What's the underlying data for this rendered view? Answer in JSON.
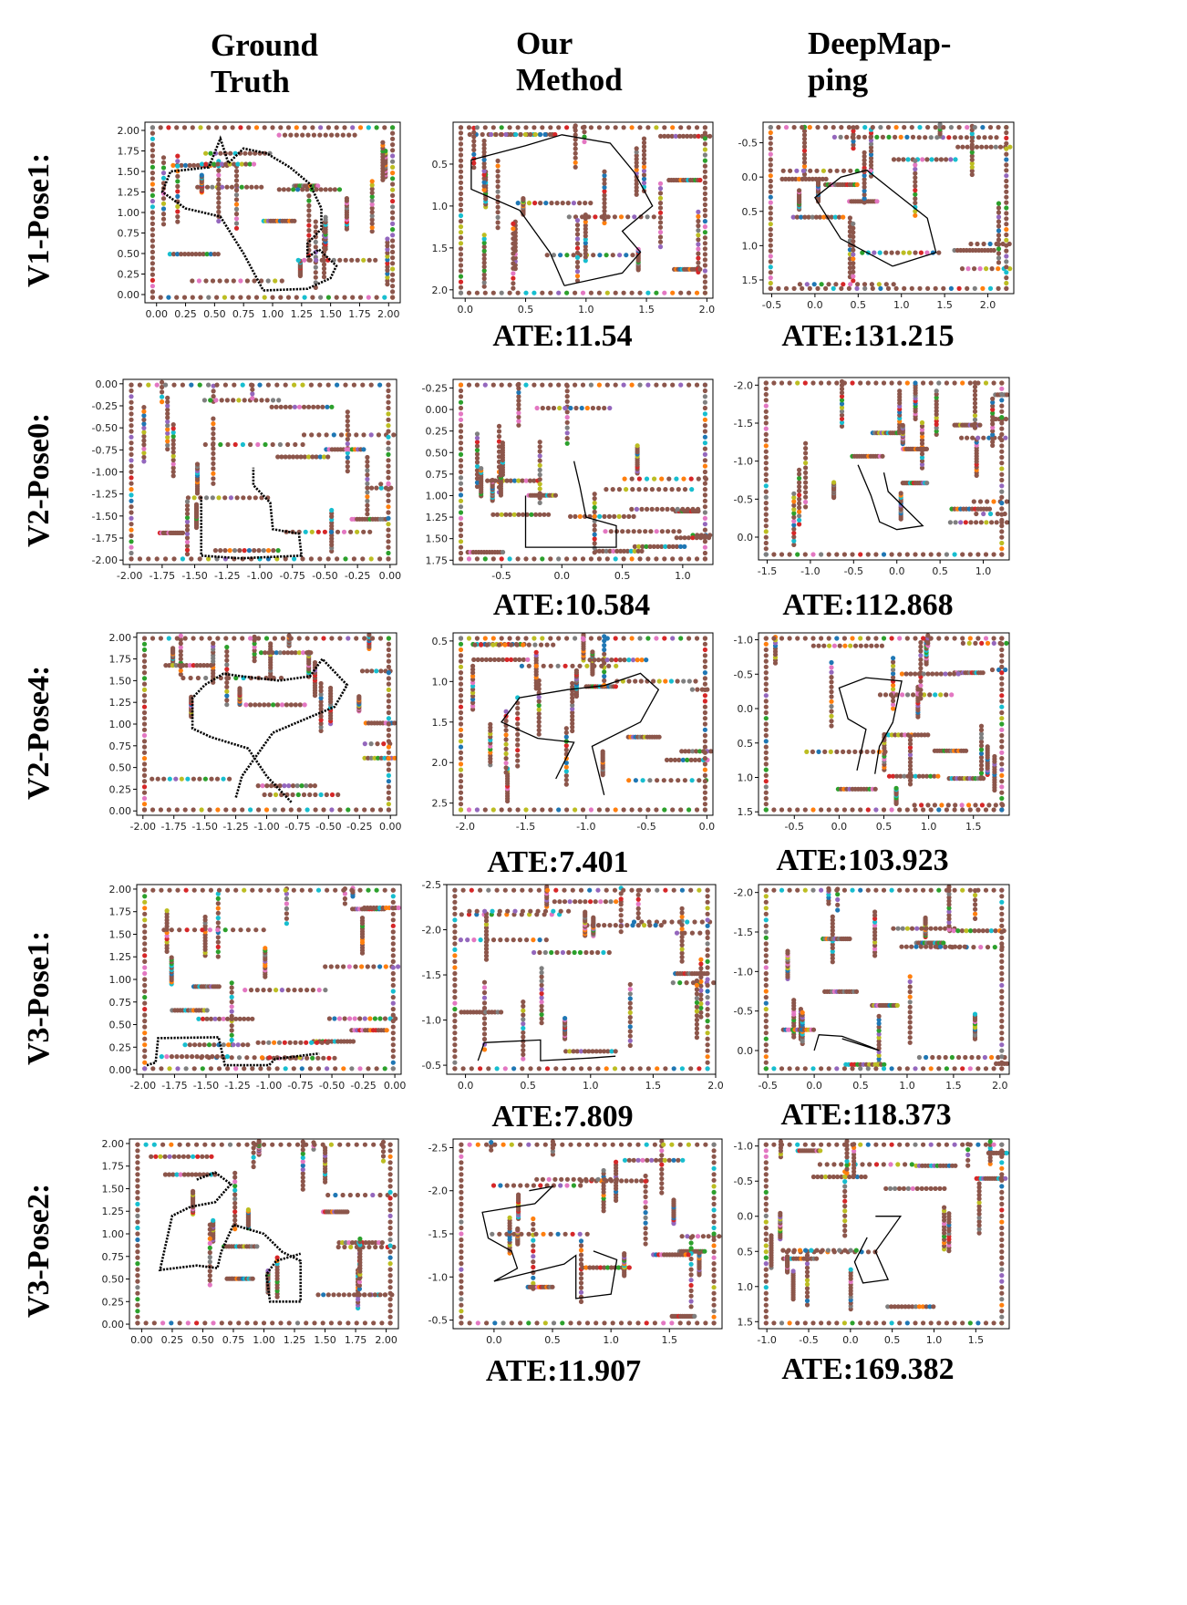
{
  "headers": {
    "ground_truth": [
      "Ground",
      "Truth"
    ],
    "our_method": [
      "Our",
      "Method"
    ],
    "deepmapping": [
      "DeepMap-",
      "ping"
    ]
  },
  "rows": [
    {
      "label": "V1-Pose1:",
      "our_ate": "ATE:11.54",
      "dm_ate": "ATE:131.215"
    },
    {
      "label": "V2-Pose0:",
      "our_ate": "ATE:10.584",
      "dm_ate": "ATE:112.868"
    },
    {
      "label": "V2-Pose4:",
      "our_ate": "ATE:7.401",
      "dm_ate": "ATE:103.923"
    },
    {
      "label": "V3-Pose1:",
      "our_ate": "ATE:7.809",
      "dm_ate": "ATE:118.373"
    },
    {
      "label": "V3-Pose2:",
      "our_ate": "ATE:11.907",
      "dm_ate": "ATE:169.382"
    }
  ],
  "colors": {
    "trajectory": "#000000",
    "wall": "#8c564b",
    "accents": [
      "#e377c2",
      "#2ca02c",
      "#1f77b4",
      "#ff7f0e",
      "#17becf",
      "#bcbd22",
      "#7f7f7f",
      "#d62728",
      "#9467bd"
    ]
  },
  "chart_data": [
    {
      "type": "scatter",
      "row": 0,
      "col": "ground_truth",
      "xlim": [
        -0.1,
        2.1
      ],
      "ylim": [
        -0.1,
        2.1
      ],
      "y_inverted": false,
      "xticks": [
        "0.00",
        "0.25",
        "0.50",
        "0.75",
        "1.00",
        "1.25",
        "1.50",
        "1.75",
        "2.00"
      ],
      "yticks": [
        "0.00",
        "0.25",
        "0.50",
        "0.75",
        "1.00",
        "1.25",
        "1.50",
        "1.75",
        "2.00"
      ],
      "trajectory": [
        [
          0.92,
          0.05
        ],
        [
          1.3,
          0.07
        ],
        [
          1.5,
          0.2
        ],
        [
          1.55,
          0.35
        ],
        [
          1.4,
          0.55
        ],
        [
          1.3,
          0.45
        ],
        [
          1.3,
          0.62
        ],
        [
          1.42,
          0.8
        ],
        [
          1.42,
          1.05
        ],
        [
          1.32,
          1.35
        ],
        [
          1.15,
          1.55
        ],
        [
          0.95,
          1.72
        ],
        [
          0.75,
          1.78
        ],
        [
          0.62,
          1.6
        ],
        [
          0.55,
          1.9
        ],
        [
          0.45,
          1.55
        ],
        [
          0.12,
          1.5
        ],
        [
          0.05,
          1.25
        ],
        [
          0.25,
          1.05
        ],
        [
          0.55,
          0.95
        ],
        [
          0.75,
          0.5
        ],
        [
          0.92,
          0.05
        ]
      ]
    },
    {
      "type": "scatter",
      "row": 0,
      "col": "our_method",
      "xlim": [
        -0.1,
        2.05
      ],
      "ylim": [
        2.1,
        0.0
      ],
      "y_inverted": true,
      "xticks": [
        "0.0",
        "0.5",
        "1.0",
        "1.5",
        "2.0"
      ],
      "yticks": [
        "0.5",
        "1.0",
        "1.5",
        "2.0"
      ],
      "trajectory": [
        [
          0.82,
          1.95
        ],
        [
          1.3,
          1.8
        ],
        [
          1.45,
          1.55
        ],
        [
          1.3,
          1.3
        ],
        [
          1.55,
          1.0
        ],
        [
          1.4,
          0.6
        ],
        [
          1.2,
          0.25
        ],
        [
          0.8,
          0.15
        ],
        [
          0.5,
          0.28
        ],
        [
          0.05,
          0.45
        ],
        [
          0.05,
          0.8
        ],
        [
          0.45,
          1.05
        ],
        [
          0.7,
          1.55
        ],
        [
          0.82,
          1.95
        ]
      ]
    },
    {
      "type": "scatter",
      "row": 0,
      "col": "deepmapping",
      "xlim": [
        -0.6,
        2.3
      ],
      "ylim": [
        1.7,
        -0.8
      ],
      "y_inverted": true,
      "xticks": [
        "-0.5",
        "0.0",
        "0.5",
        "1.0",
        "1.5",
        "2.0"
      ],
      "yticks": [
        "-0.5",
        "0.0",
        "0.5",
        "1.0",
        "1.5"
      ],
      "trajectory": [
        [
          0.9,
          1.3
        ],
        [
          1.4,
          1.1
        ],
        [
          1.3,
          0.6
        ],
        [
          0.9,
          0.2
        ],
        [
          0.6,
          -0.1
        ],
        [
          0.3,
          0.0
        ],
        [
          0.0,
          0.3
        ],
        [
          0.3,
          0.9
        ],
        [
          0.9,
          1.3
        ]
      ]
    },
    {
      "type": "scatter",
      "row": 1,
      "col": "ground_truth",
      "xlim": [
        -2.05,
        0.05
      ],
      "ylim": [
        -2.05,
        0.05
      ],
      "y_inverted": false,
      "xticks": [
        "-2.00",
        "-1.75",
        "-1.50",
        "-1.25",
        "-1.00",
        "-0.75",
        "-0.50",
        "-0.25",
        "0.00"
      ],
      "yticks": [
        "0.00",
        "-0.25",
        "-0.50",
        "-0.75",
        "-1.00",
        "-1.25",
        "-1.50",
        "-1.75",
        "-2.00"
      ],
      "trajectory": [
        [
          -1.45,
          -1.28
        ],
        [
          -1.45,
          -1.95
        ],
        [
          -1.15,
          -1.98
        ],
        [
          -0.68,
          -1.95
        ],
        [
          -0.7,
          -1.7
        ],
        [
          -0.9,
          -1.65
        ],
        [
          -0.92,
          -1.35
        ],
        [
          -1.05,
          -1.15
        ],
        [
          -1.05,
          -0.95
        ]
      ]
    },
    {
      "type": "scatter",
      "row": 1,
      "col": "our_method",
      "xlim": [
        -0.9,
        1.25
      ],
      "ylim": [
        1.8,
        -0.35
      ],
      "y_inverted": true,
      "xticks": [
        "-0.5",
        "0.0",
        "0.5",
        "1.0"
      ],
      "yticks": [
        "-0.25",
        "0.00",
        "0.25",
        "0.50",
        "0.75",
        "1.00",
        "1.25",
        "1.50",
        "1.75"
      ],
      "trajectory": [
        [
          -0.3,
          1.0
        ],
        [
          -0.3,
          1.6
        ],
        [
          0.3,
          1.6
        ],
        [
          0.45,
          1.6
        ],
        [
          0.45,
          1.35
        ],
        [
          0.2,
          1.25
        ],
        [
          0.15,
          0.9
        ],
        [
          0.1,
          0.6
        ]
      ]
    },
    {
      "type": "scatter",
      "row": 1,
      "col": "deepmapping",
      "xlim": [
        -1.6,
        1.3
      ],
      "ylim": [
        0.3,
        -2.1
      ],
      "y_inverted": true,
      "xticks": [
        "-1.5",
        "-1.0",
        "-0.5",
        "0.0",
        "0.5",
        "1.0"
      ],
      "yticks": [
        "-2.0",
        "-1.5",
        "-1.0",
        "-0.5",
        "0.0"
      ],
      "trajectory": [
        [
          -0.45,
          -0.95
        ],
        [
          -0.3,
          -0.55
        ],
        [
          -0.2,
          -0.2
        ],
        [
          0.0,
          -0.1
        ],
        [
          0.3,
          -0.15
        ],
        [
          -0.1,
          -0.6
        ],
        [
          -0.15,
          -0.85
        ]
      ]
    },
    {
      "type": "scatter",
      "row": 2,
      "col": "ground_truth",
      "xlim": [
        -2.05,
        0.05
      ],
      "ylim": [
        -0.05,
        2.05
      ],
      "y_inverted": false,
      "xticks": [
        "-2.00",
        "-1.75",
        "-1.50",
        "-1.25",
        "-1.00",
        "-0.75",
        "-0.50",
        "-0.25",
        "0.00"
      ],
      "yticks": [
        "0.00",
        "0.25",
        "0.50",
        "0.75",
        "1.00",
        "1.25",
        "1.50",
        "1.75",
        "2.00"
      ],
      "trajectory": [
        [
          -0.8,
          0.1
        ],
        [
          -1.0,
          0.4
        ],
        [
          -1.15,
          0.72
        ],
        [
          -1.45,
          0.85
        ],
        [
          -1.6,
          0.95
        ],
        [
          -1.6,
          1.3
        ],
        [
          -1.5,
          1.45
        ],
        [
          -1.35,
          1.58
        ],
        [
          -1.2,
          1.55
        ],
        [
          -0.9,
          1.5
        ],
        [
          -0.65,
          1.55
        ],
        [
          -0.55,
          1.75
        ],
        [
          -0.45,
          1.6
        ],
        [
          -0.35,
          1.45
        ],
        [
          -0.45,
          1.2
        ],
        [
          -0.7,
          1.05
        ],
        [
          -0.95,
          0.9
        ],
        [
          -1.05,
          0.7
        ],
        [
          -1.2,
          0.4
        ],
        [
          -1.25,
          0.15
        ]
      ]
    },
    {
      "type": "scatter",
      "row": 2,
      "col": "our_method",
      "xlim": [
        -2.1,
        0.05
      ],
      "ylim": [
        2.65,
        0.4
      ],
      "y_inverted": true,
      "xticks": [
        "-2.0",
        "-1.5",
        "-1.0",
        "-0.5",
        "0.0"
      ],
      "yticks": [
        "0.5",
        "1.0",
        "1.5",
        "2.0",
        "2.5"
      ],
      "trajectory": [
        [
          -0.85,
          2.4
        ],
        [
          -0.95,
          1.8
        ],
        [
          -0.55,
          1.5
        ],
        [
          -0.4,
          1.1
        ],
        [
          -0.55,
          0.9
        ],
        [
          -0.85,
          1.05
        ],
        [
          -1.15,
          1.1
        ],
        [
          -1.55,
          1.2
        ],
        [
          -1.7,
          1.5
        ],
        [
          -1.4,
          1.7
        ],
        [
          -1.1,
          1.75
        ],
        [
          -1.25,
          2.2
        ]
      ]
    },
    {
      "type": "scatter",
      "row": 2,
      "col": "deepmapping",
      "xlim": [
        -0.9,
        1.9
      ],
      "ylim": [
        1.55,
        -1.1
      ],
      "y_inverted": true,
      "xticks": [
        "-0.5",
        "0.0",
        "0.5",
        "1.0",
        "1.5"
      ],
      "yticks": [
        "-1.0",
        "-0.5",
        "0.0",
        "0.5",
        "1.0",
        "1.5"
      ],
      "trajectory": [
        [
          0.2,
          0.9
        ],
        [
          0.3,
          0.3
        ],
        [
          0.1,
          0.15
        ],
        [
          0.0,
          -0.3
        ],
        [
          0.3,
          -0.45
        ],
        [
          0.7,
          -0.4
        ],
        [
          0.6,
          0.2
        ],
        [
          0.45,
          0.55
        ],
        [
          0.4,
          0.95
        ]
      ]
    },
    {
      "type": "scatter",
      "row": 3,
      "col": "ground_truth",
      "xlim": [
        -2.05,
        0.05
      ],
      "ylim": [
        -0.05,
        2.05
      ],
      "y_inverted": false,
      "xticks": [
        "-2.00",
        "-1.75",
        "-1.50",
        "-1.25",
        "-1.00",
        "-0.75",
        "-0.50",
        "-0.25",
        "0.00"
      ],
      "yticks": [
        "0.00",
        "0.25",
        "0.50",
        "0.75",
        "1.00",
        "1.25",
        "1.50",
        "1.75",
        "2.00"
      ],
      "trajectory": [
        [
          -1.97,
          0.05
        ],
        [
          -1.9,
          0.08
        ],
        [
          -1.88,
          0.35
        ],
        [
          -1.4,
          0.36
        ],
        [
          -1.35,
          0.05
        ],
        [
          -1.0,
          0.05
        ],
        [
          -0.95,
          0.12
        ],
        [
          -0.6,
          0.18
        ]
      ]
    },
    {
      "type": "scatter",
      "row": 3,
      "col": "our_method",
      "xlim": [
        -0.15,
        2.0
      ],
      "ylim": [
        -0.4,
        -2.5
      ],
      "y_inverted": true,
      "xticks": [
        "0.0",
        "0.5",
        "1.0",
        "1.5",
        "2.0"
      ],
      "yticks": [
        "-2.5",
        "-2.0",
        "-1.5",
        "-1.0",
        "-0.5"
      ],
      "trajectory": [
        [
          0.1,
          -0.55
        ],
        [
          0.15,
          -0.75
        ],
        [
          0.6,
          -0.78
        ],
        [
          0.6,
          -0.55
        ],
        [
          1.0,
          -0.58
        ],
        [
          1.2,
          -0.6
        ]
      ]
    },
    {
      "type": "scatter",
      "row": 3,
      "col": "deepmapping",
      "xlim": [
        -0.6,
        2.1
      ],
      "ylim": [
        0.3,
        -2.1
      ],
      "y_inverted": true,
      "xticks": [
        "-0.5",
        "0.0",
        "0.5",
        "1.0",
        "1.5",
        "2.0"
      ],
      "yticks": [
        "-2.0",
        "-1.5",
        "-1.0",
        "-0.5",
        "0.0"
      ],
      "trajectory": [
        [
          0.0,
          0.0
        ],
        [
          0.05,
          -0.2
        ],
        [
          0.3,
          -0.18
        ],
        [
          0.6,
          -0.05
        ],
        [
          0.7,
          0.0
        ],
        [
          0.3,
          -0.15
        ]
      ]
    },
    {
      "type": "scatter",
      "row": 4,
      "col": "ground_truth",
      "xlim": [
        -0.1,
        2.1
      ],
      "ylim": [
        -0.05,
        2.05
      ],
      "y_inverted": false,
      "xticks": [
        "0.00",
        "0.25",
        "0.50",
        "0.75",
        "1.00",
        "1.25",
        "1.50",
        "1.75",
        "2.00"
      ],
      "yticks": [
        "0.00",
        "0.25",
        "0.50",
        "0.75",
        "1.00",
        "1.25",
        "1.50",
        "1.75",
        "2.00"
      ],
      "trajectory": [
        [
          0.45,
          1.6
        ],
        [
          0.6,
          1.68
        ],
        [
          0.73,
          1.55
        ],
        [
          0.6,
          1.35
        ],
        [
          0.4,
          1.3
        ],
        [
          0.25,
          1.2
        ],
        [
          0.2,
          0.9
        ],
        [
          0.15,
          0.6
        ],
        [
          0.45,
          0.65
        ],
        [
          0.62,
          0.62
        ],
        [
          0.65,
          0.8
        ],
        [
          0.75,
          1.1
        ],
        [
          1.0,
          1.0
        ],
        [
          1.15,
          0.8
        ],
        [
          1.3,
          0.7
        ],
        [
          1.3,
          0.25
        ],
        [
          1.05,
          0.25
        ],
        [
          1.02,
          0.55
        ],
        [
          1.1,
          0.7
        ],
        [
          1.3,
          0.78
        ]
      ]
    },
    {
      "type": "scatter",
      "row": 4,
      "col": "our_method",
      "xlim": [
        -0.35,
        1.95
      ],
      "ylim": [
        -0.4,
        -2.6
      ],
      "y_inverted": true,
      "xticks": [
        "0.0",
        "0.5",
        "1.0",
        "1.5"
      ],
      "yticks": [
        "-2.5",
        "-2.0",
        "-1.5",
        "-1.0",
        "-0.5"
      ],
      "trajectory": [
        [
          0.3,
          -2.0
        ],
        [
          0.5,
          -2.05
        ],
        [
          0.35,
          -1.85
        ],
        [
          -0.1,
          -1.75
        ],
        [
          -0.05,
          -1.45
        ],
        [
          0.15,
          -1.3
        ],
        [
          0.2,
          -1.1
        ],
        [
          0.0,
          -0.95
        ],
        [
          0.6,
          -1.15
        ],
        [
          0.7,
          -1.25
        ],
        [
          0.7,
          -0.75
        ],
        [
          1.0,
          -0.8
        ],
        [
          1.05,
          -1.2
        ],
        [
          0.85,
          -1.3
        ]
      ]
    },
    {
      "type": "scatter",
      "row": 4,
      "col": "deepmapping",
      "xlim": [
        -1.1,
        1.9
      ],
      "ylim": [
        1.6,
        -1.1
      ],
      "y_inverted": true,
      "xticks": [
        "-1.0",
        "-0.5",
        "0.0",
        "0.5",
        "1.0",
        "1.5"
      ],
      "yticks": [
        "-1.0",
        "-0.5",
        "0.0",
        "0.5",
        "1.0",
        "1.5"
      ],
      "trajectory": [
        [
          0.3,
          0.0
        ],
        [
          0.6,
          0.0
        ],
        [
          0.3,
          0.5
        ],
        [
          0.45,
          0.9
        ],
        [
          0.15,
          0.95
        ],
        [
          0.05,
          0.65
        ],
        [
          0.2,
          0.3
        ]
      ]
    }
  ]
}
